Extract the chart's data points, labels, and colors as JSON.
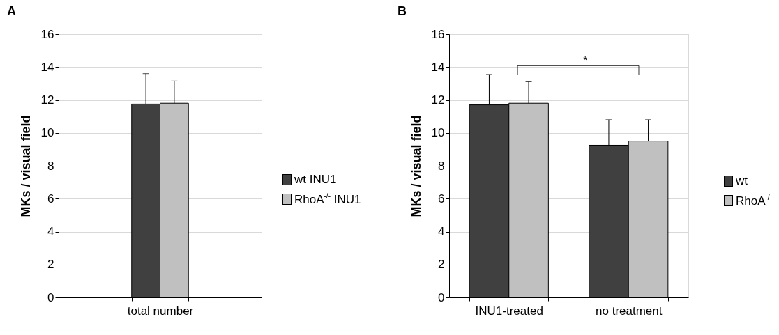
{
  "chart_data": [
    {
      "type": "bar",
      "title": "A",
      "ylabel": "MKs / visual field",
      "categories": [
        "total number"
      ],
      "series": [
        {
          "name": "wt  INU1",
          "color": "#404040",
          "values": [
            11.75
          ],
          "errors": [
            [
              11.75,
              13.6
            ]
          ]
        },
        {
          "name": "RhoA$^{-/-}$ INU1",
          "color": "#c0c0c0",
          "values": [
            11.8
          ],
          "errors": [
            [
              11.8,
              13.15
            ]
          ]
        }
      ],
      "ylim": [
        0,
        16
      ],
      "yticks": [
        0,
        2,
        4,
        6,
        8,
        10,
        12,
        14,
        16
      ],
      "grid": "y",
      "legend": "right"
    },
    {
      "type": "bar",
      "title": "B",
      "ylabel": "MKs / visual field",
      "categories": [
        "INU1-treated",
        "no treatment"
      ],
      "series": [
        {
          "name": "wt",
          "color": "#404040",
          "values": [
            11.7,
            9.25
          ],
          "errors": [
            [
              11.7,
              13.55
            ],
            [
              9.25,
              10.8
            ]
          ]
        },
        {
          "name": "RhoA$^{-/-}$",
          "color": "#c0c0c0",
          "values": [
            11.8,
            9.5
          ],
          "errors": [
            [
              11.8,
              13.1
            ],
            [
              9.5,
              10.8
            ]
          ]
        }
      ],
      "ylim": [
        0,
        16
      ],
      "yticks": [
        0,
        2,
        4,
        6,
        8,
        10,
        12,
        14,
        16
      ],
      "grid": "y",
      "legend": "right",
      "annotations": [
        "*"
      ]
    }
  ]
}
